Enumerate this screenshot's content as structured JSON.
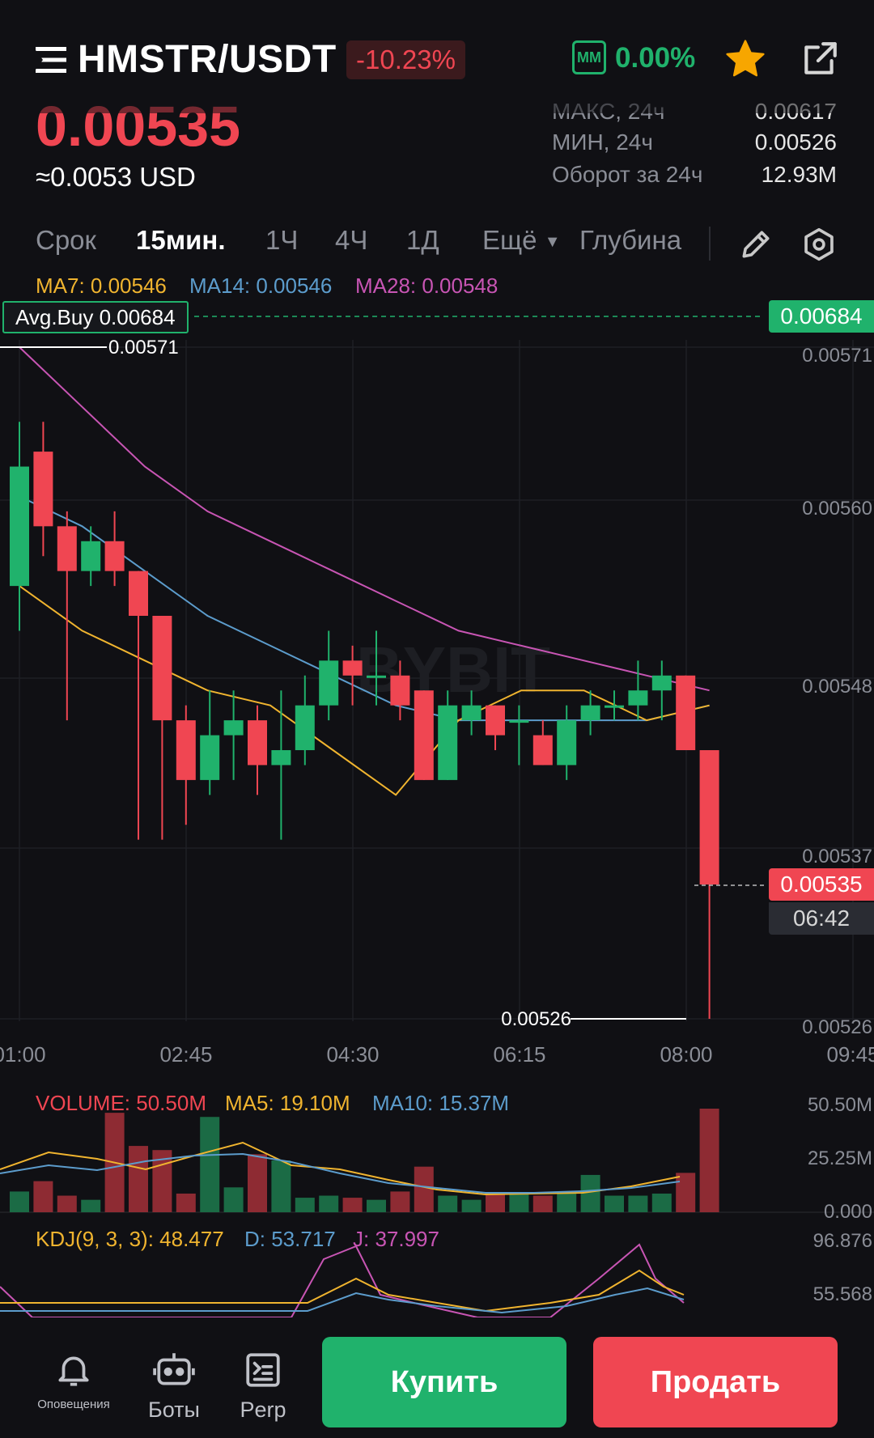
{
  "header": {
    "pair": "HMSTR/USDT",
    "change": "-10.23%",
    "mm_badge": "MM",
    "mm_value": "0.00%",
    "price": "0.00535",
    "usd_price": "≈0.0053 USD",
    "stats": [
      {
        "label": "МАКС, 24ч",
        "value": "0.00617"
      },
      {
        "label": "МИН, 24ч",
        "value": "0.00526"
      },
      {
        "label": "Оборот за 24ч",
        "value": "12.93M"
      }
    ]
  },
  "timeframes": {
    "term": "Срок",
    "items": [
      "15мин.",
      "1Ч",
      "4Ч",
      "1Д"
    ],
    "active": "15мин.",
    "more": "Ещё",
    "depth": "Глубина"
  },
  "ma": {
    "ma7": "MA7: 0.00546",
    "ma14": "MA14: 0.00546",
    "ma28": "MA28: 0.00548"
  },
  "chart_data": {
    "type": "candlestick",
    "y_ticks": [
      "0.00571",
      "0.00560",
      "0.00548",
      "0.00537",
      "0.00526"
    ],
    "x_ticks": [
      "01:00",
      "02:45",
      "04:30",
      "06:15",
      "08:00",
      "09:45"
    ],
    "ylim": [
      0.00526,
      0.00571
    ],
    "watermark": "BYBIT",
    "avg_buy_label": "Avg.Buy 0.00684",
    "avg_buy_value": "0.00684",
    "current_price_tag": "0.00535",
    "countdown": "06:42",
    "high_marker": "0.00571",
    "low_marker": "0.00526",
    "candles": [
      {
        "o": 0.00555,
        "c": 0.00563,
        "h": 0.00566,
        "l": 0.00552
      },
      {
        "o": 0.00564,
        "c": 0.00559,
        "h": 0.00566,
        "l": 0.00557
      },
      {
        "o": 0.00559,
        "c": 0.00556,
        "h": 0.0056,
        "l": 0.00546
      },
      {
        "o": 0.00556,
        "c": 0.00558,
        "h": 0.00559,
        "l": 0.00555
      },
      {
        "o": 0.00558,
        "c": 0.00556,
        "h": 0.0056,
        "l": 0.00555
      },
      {
        "o": 0.00556,
        "c": 0.00553,
        "h": 0.00556,
        "l": 0.00538
      },
      {
        "o": 0.00553,
        "c": 0.00546,
        "h": 0.00553,
        "l": 0.00538
      },
      {
        "o": 0.00546,
        "c": 0.00542,
        "h": 0.00547,
        "l": 0.00539
      },
      {
        "o": 0.00542,
        "c": 0.00545,
        "h": 0.00548,
        "l": 0.00541
      },
      {
        "o": 0.00545,
        "c": 0.00546,
        "h": 0.00548,
        "l": 0.00542
      },
      {
        "o": 0.00546,
        "c": 0.00543,
        "h": 0.00547,
        "l": 0.00541
      },
      {
        "o": 0.00543,
        "c": 0.00544,
        "h": 0.00548,
        "l": 0.00538
      },
      {
        "o": 0.00544,
        "c": 0.00547,
        "h": 0.00549,
        "l": 0.00543
      },
      {
        "o": 0.00547,
        "c": 0.0055,
        "h": 0.00552,
        "l": 0.00546
      },
      {
        "o": 0.0055,
        "c": 0.00549,
        "h": 0.00551,
        "l": 0.00547
      },
      {
        "o": 0.00549,
        "c": 0.00549,
        "h": 0.00552,
        "l": 0.00547
      },
      {
        "o": 0.00549,
        "c": 0.00547,
        "h": 0.0055,
        "l": 0.00546
      },
      {
        "o": 0.00548,
        "c": 0.00542,
        "h": 0.00548,
        "l": 0.00542
      },
      {
        "o": 0.00542,
        "c": 0.00547,
        "h": 0.00548,
        "l": 0.00542
      },
      {
        "o": 0.00546,
        "c": 0.00547,
        "h": 0.00548,
        "l": 0.00545
      },
      {
        "o": 0.00547,
        "c": 0.00545,
        "h": 0.00547,
        "l": 0.00544
      },
      {
        "o": 0.00546,
        "c": 0.00546,
        "h": 0.00547,
        "l": 0.00543
      },
      {
        "o": 0.00545,
        "c": 0.00543,
        "h": 0.00546,
        "l": 0.00543
      },
      {
        "o": 0.00543,
        "c": 0.00546,
        "h": 0.00547,
        "l": 0.00542
      },
      {
        "o": 0.00546,
        "c": 0.00547,
        "h": 0.00548,
        "l": 0.00545
      },
      {
        "o": 0.00547,
        "c": 0.00547,
        "h": 0.00548,
        "l": 0.00546
      },
      {
        "o": 0.00547,
        "c": 0.00548,
        "h": 0.0055,
        "l": 0.00546
      },
      {
        "o": 0.00548,
        "c": 0.00549,
        "h": 0.0055,
        "l": 0.00546
      },
      {
        "o": 0.00549,
        "c": 0.00544,
        "h": 0.00549,
        "l": 0.00544
      },
      {
        "o": 0.00544,
        "c": 0.00535,
        "h": 0.00544,
        "l": 0.00526
      }
    ],
    "ma7_values": [
      0.00555,
      0.00552,
      0.0055,
      0.00548,
      0.00547,
      0.00544,
      0.00541,
      0.00546,
      0.00548,
      0.00548,
      0.00546,
      0.00547
    ],
    "ma14_values": [
      0.00561,
      0.00559,
      0.00556,
      0.00553,
      0.00551,
      0.00549,
      0.00547,
      0.00546,
      0.00546,
      0.00546,
      0.00546,
      0.00547
    ],
    "ma28_values": [
      0.00571,
      0.00567,
      0.00563,
      0.0056,
      0.00558,
      0.00556,
      0.00554,
      0.00552,
      0.00551,
      0.0055,
      0.00549,
      0.00548
    ]
  },
  "volume": {
    "label": "VOLUME: 50.50M",
    "ma5": "MA5: 19.10M",
    "ma10": "MA10: 15.37M",
    "y_ticks": [
      "50.50M",
      "25.25M",
      "0.000"
    ],
    "bars": [
      10,
      15,
      8,
      6,
      48,
      32,
      30,
      9,
      46,
      12,
      28,
      25,
      7,
      8,
      7,
      6,
      10,
      22,
      8,
      6,
      9,
      9,
      8,
      10,
      18,
      8,
      8,
      9,
      19,
      50
    ]
  },
  "kdj": {
    "label": "KDJ(9, 3, 3): 48.477",
    "d": "D: 53.717",
    "j": "J: 37.997",
    "y_ticks": [
      "96.876",
      "55.568"
    ]
  },
  "nav": {
    "alerts": "Оповещения",
    "bots": "Боты",
    "perp": "Perp",
    "buy": "Купить",
    "sell": "Продать"
  },
  "colors": {
    "up": "#20b26c",
    "down": "#f04652",
    "ma7": "#f0b42f",
    "ma14": "#5c9ccc",
    "ma28": "#c855b4"
  }
}
